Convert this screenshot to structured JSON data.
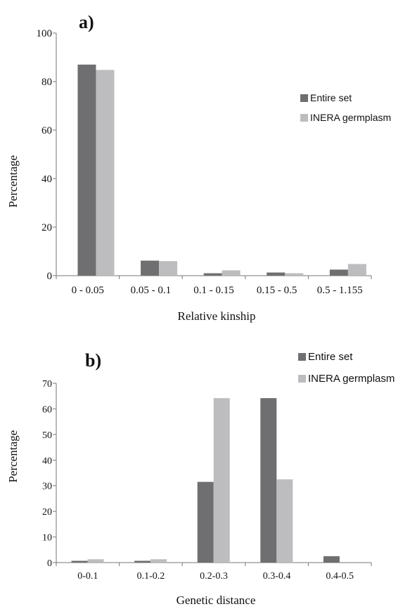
{
  "colors": {
    "series_dark": "#6f6f72",
    "series_light": "#bdbdc0",
    "axis": "#777777"
  },
  "chart_data": [
    {
      "type": "bar",
      "panel_label": "a)",
      "xlabel": "Relative kinship",
      "ylabel": "Percentage",
      "ylim": [
        0,
        100
      ],
      "yticks": [
        0,
        20,
        40,
        60,
        80,
        100
      ],
      "grid": false,
      "legend_position": "right",
      "categories": [
        "0 - 0.05",
        "0.05 - 0.1",
        "0.1 - 0.15",
        "0.15 - 0.5",
        "0.5 - 1.155"
      ],
      "series": [
        {
          "name": "Entire set",
          "values": [
            87,
            6.2,
            1,
            1.3,
            2.5
          ]
        },
        {
          "name": "INERA germplasm",
          "values": [
            84.8,
            6,
            2.2,
            1,
            4.8
          ]
        }
      ]
    },
    {
      "type": "bar",
      "panel_label": "b)",
      "xlabel": "Genetic distance",
      "ylabel": "Percentage",
      "ylim": [
        0,
        70
      ],
      "yticks": [
        0,
        10,
        20,
        30,
        40,
        50,
        60,
        70
      ],
      "grid": false,
      "legend_position": "top-right",
      "categories": [
        "0-0.1",
        "0.1-0.2",
        "0.2-0.3",
        "0.3-0.4",
        "0.4-0.5"
      ],
      "series": [
        {
          "name": "Entire set",
          "values": [
            0.7,
            0.7,
            31.5,
            64.2,
            2.5
          ]
        },
        {
          "name": "INERA germplasm",
          "values": [
            1.3,
            1.3,
            64.2,
            32.5,
            0
          ]
        }
      ]
    }
  ]
}
